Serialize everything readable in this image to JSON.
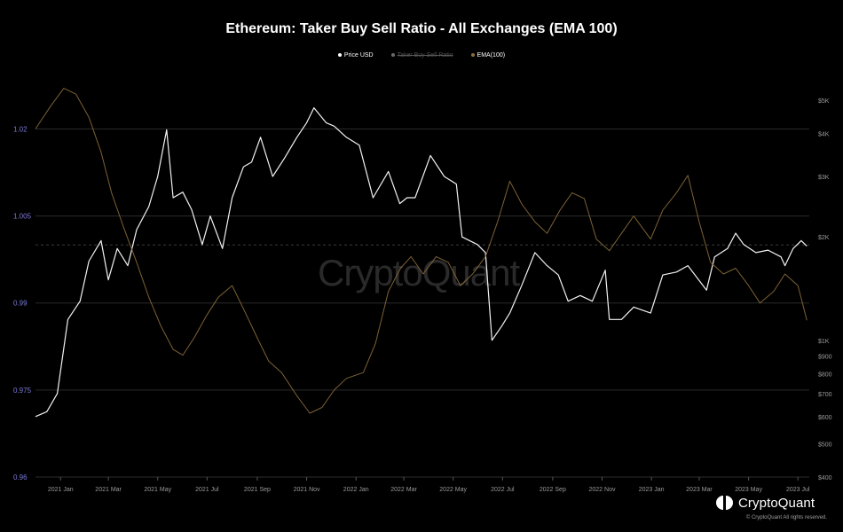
{
  "title": "Ethereum: Taker Buy Sell Ratio - All Exchanges (EMA 100)",
  "legend": [
    {
      "label": "Price USD",
      "color": "#ffffff",
      "active": true
    },
    {
      "label": "Taker Buy Sell Ratio",
      "color": "#6b6b6b",
      "active": false
    },
    {
      "label": "EMA(100)",
      "color": "#8a6d3b",
      "active": true
    }
  ],
  "watermark": "CryptoQuant",
  "brand": {
    "name": "CryptoQuant",
    "copyright": "© CryptoQuant All rights reserved."
  },
  "colors": {
    "background": "#000000",
    "price": "#ffffff",
    "ema": "#8a6d3b",
    "left_axis": "#7b7bd6",
    "right_axis": "#9a9a9a",
    "x_axis": "#9a9a9a",
    "grid": "#2b2b2b"
  },
  "chart_data": {
    "type": "line",
    "x_ticks": [
      "2021 Jan",
      "2021 Mar",
      "2021 May",
      "2021 Jul",
      "2021 Sep",
      "2021 Nov",
      "2022 Jan",
      "2022 Mar",
      "2022 May",
      "2022 Jul",
      "2022 Sep",
      "2022 Nov",
      "2023 Jan",
      "2023 Mar",
      "2023 May",
      "2023 Jul"
    ],
    "xlim": [
      "2020-12-01",
      "2023-07-15"
    ],
    "y_left": {
      "label": "",
      "ticks": [
        "1.02",
        "1.005",
        "0.99",
        "0.975",
        "0.96"
      ],
      "tick_values": [
        1.02,
        1.005,
        0.99,
        0.975,
        0.96
      ],
      "range": [
        0.96,
        1.03
      ]
    },
    "y_right": {
      "label": "",
      "scale": "log",
      "ticks": [
        "$5K",
        "$4K",
        "$3K",
        "$2K",
        "$1K",
        "$900",
        "$800",
        "$700",
        "$600",
        "$500",
        "$400"
      ],
      "tick_values": [
        5000,
        4000,
        3000,
        2000,
        1000,
        900,
        800,
        700,
        600,
        500,
        400
      ],
      "range": [
        400,
        5000
      ]
    },
    "grid": true,
    "legend_position": "top-center",
    "series": [
      {
        "name": "Price USD",
        "axis": "right",
        "color": "#ffffff",
        "points": [
          [
            "2020-12-01",
            600
          ],
          [
            "2020-12-15",
            620
          ],
          [
            "2020-12-28",
            700
          ],
          [
            "2021-01-10",
            1150
          ],
          [
            "2021-01-25",
            1300
          ],
          [
            "2021-02-05",
            1700
          ],
          [
            "2021-02-20",
            1950
          ],
          [
            "2021-03-01",
            1500
          ],
          [
            "2021-03-12",
            1850
          ],
          [
            "2021-03-25",
            1650
          ],
          [
            "2021-04-05",
            2100
          ],
          [
            "2021-04-20",
            2450
          ],
          [
            "2021-05-01",
            3000
          ],
          [
            "2021-05-12",
            4100
          ],
          [
            "2021-05-20",
            2600
          ],
          [
            "2021-06-01",
            2700
          ],
          [
            "2021-06-12",
            2400
          ],
          [
            "2021-06-25",
            1900
          ],
          [
            "2021-07-05",
            2300
          ],
          [
            "2021-07-20",
            1850
          ],
          [
            "2021-08-01",
            2600
          ],
          [
            "2021-08-15",
            3200
          ],
          [
            "2021-08-25",
            3300
          ],
          [
            "2021-09-05",
            3900
          ],
          [
            "2021-09-20",
            3000
          ],
          [
            "2021-10-05",
            3400
          ],
          [
            "2021-10-20",
            3900
          ],
          [
            "2021-11-01",
            4300
          ],
          [
            "2021-11-10",
            4750
          ],
          [
            "2021-11-25",
            4300
          ],
          [
            "2021-12-05",
            4200
          ],
          [
            "2021-12-20",
            3900
          ],
          [
            "2022-01-05",
            3700
          ],
          [
            "2022-01-22",
            2600
          ],
          [
            "2022-02-10",
            3100
          ],
          [
            "2022-02-24",
            2500
          ],
          [
            "2022-03-05",
            2600
          ],
          [
            "2022-03-15",
            2600
          ],
          [
            "2022-04-03",
            3450
          ],
          [
            "2022-04-20",
            3000
          ],
          [
            "2022-05-05",
            2850
          ],
          [
            "2022-05-12",
            2000
          ],
          [
            "2022-05-31",
            1900
          ],
          [
            "2022-06-10",
            1800
          ],
          [
            "2022-06-18",
            1000
          ],
          [
            "2022-06-30",
            1100
          ],
          [
            "2022-07-10",
            1200
          ],
          [
            "2022-07-25",
            1450
          ],
          [
            "2022-08-10",
            1800
          ],
          [
            "2022-08-25",
            1650
          ],
          [
            "2022-09-08",
            1550
          ],
          [
            "2022-09-20",
            1300
          ],
          [
            "2022-10-05",
            1350
          ],
          [
            "2022-10-20",
            1300
          ],
          [
            "2022-11-05",
            1600
          ],
          [
            "2022-11-10",
            1150
          ],
          [
            "2022-11-25",
            1150
          ],
          [
            "2022-12-10",
            1250
          ],
          [
            "2022-12-31",
            1200
          ],
          [
            "2023-01-15",
            1550
          ],
          [
            "2023-02-01",
            1580
          ],
          [
            "2023-02-15",
            1650
          ],
          [
            "2023-03-10",
            1400
          ],
          [
            "2023-03-20",
            1750
          ],
          [
            "2023-04-05",
            1850
          ],
          [
            "2023-04-15",
            2050
          ],
          [
            "2023-04-25",
            1900
          ],
          [
            "2023-05-10",
            1800
          ],
          [
            "2023-05-25",
            1830
          ],
          [
            "2023-06-10",
            1750
          ],
          [
            "2023-06-15",
            1650
          ],
          [
            "2023-06-25",
            1850
          ],
          [
            "2023-07-05",
            1950
          ],
          [
            "2023-07-12",
            1880
          ]
        ]
      },
      {
        "name": "EMA(100)",
        "axis": "left",
        "color": "#8a6d3b",
        "points": [
          [
            "2020-12-01",
            1.02
          ],
          [
            "2020-12-20",
            1.024
          ],
          [
            "2021-01-05",
            1.027
          ],
          [
            "2021-01-20",
            1.026
          ],
          [
            "2021-02-05",
            1.022
          ],
          [
            "2021-02-20",
            1.016
          ],
          [
            "2021-03-05",
            1.009
          ],
          [
            "2021-03-20",
            1.003
          ],
          [
            "2021-04-05",
            0.997
          ],
          [
            "2021-04-20",
            0.991
          ],
          [
            "2021-05-05",
            0.986
          ],
          [
            "2021-05-20",
            0.982
          ],
          [
            "2021-06-01",
            0.981
          ],
          [
            "2021-06-15",
            0.984
          ],
          [
            "2021-07-01",
            0.988
          ],
          [
            "2021-07-15",
            0.991
          ],
          [
            "2021-08-01",
            0.993
          ],
          [
            "2021-08-15",
            0.989
          ],
          [
            "2021-09-01",
            0.984
          ],
          [
            "2021-09-15",
            0.98
          ],
          [
            "2021-10-01",
            0.978
          ],
          [
            "2021-10-20",
            0.974
          ],
          [
            "2021-11-05",
            0.971
          ],
          [
            "2021-11-20",
            0.972
          ],
          [
            "2021-12-05",
            0.975
          ],
          [
            "2021-12-20",
            0.977
          ],
          [
            "2022-01-10",
            0.978
          ],
          [
            "2022-01-25",
            0.983
          ],
          [
            "2022-02-10",
            0.992
          ],
          [
            "2022-02-25",
            0.996
          ],
          [
            "2022-03-10",
            0.998
          ],
          [
            "2022-03-25",
            0.995
          ],
          [
            "2022-04-10",
            0.998
          ],
          [
            "2022-04-25",
            0.997
          ],
          [
            "2022-05-10",
            0.993
          ],
          [
            "2022-05-25",
            0.995
          ],
          [
            "2022-06-10",
            0.998
          ],
          [
            "2022-06-25",
            1.004
          ],
          [
            "2022-07-10",
            1.011
          ],
          [
            "2022-07-25",
            1.007
          ],
          [
            "2022-08-10",
            1.004
          ],
          [
            "2022-08-25",
            1.002
          ],
          [
            "2022-09-10",
            1.006
          ],
          [
            "2022-09-25",
            1.009
          ],
          [
            "2022-10-10",
            1.008
          ],
          [
            "2022-10-25",
            1.001
          ],
          [
            "2022-11-10",
            0.999
          ],
          [
            "2022-11-25",
            1.002
          ],
          [
            "2022-12-10",
            1.005
          ],
          [
            "2022-12-31",
            1.001
          ],
          [
            "2023-01-15",
            1.006
          ],
          [
            "2023-02-01",
            1.009
          ],
          [
            "2023-02-15",
            1.012
          ],
          [
            "2023-03-01",
            1.004
          ],
          [
            "2023-03-15",
            0.997
          ],
          [
            "2023-03-31",
            0.995
          ],
          [
            "2023-04-15",
            0.996
          ],
          [
            "2023-05-01",
            0.993
          ],
          [
            "2023-05-15",
            0.99
          ],
          [
            "2023-06-01",
            0.992
          ],
          [
            "2023-06-15",
            0.995
          ],
          [
            "2023-07-01",
            0.993
          ],
          [
            "2023-07-12",
            0.987
          ]
        ]
      }
    ]
  }
}
